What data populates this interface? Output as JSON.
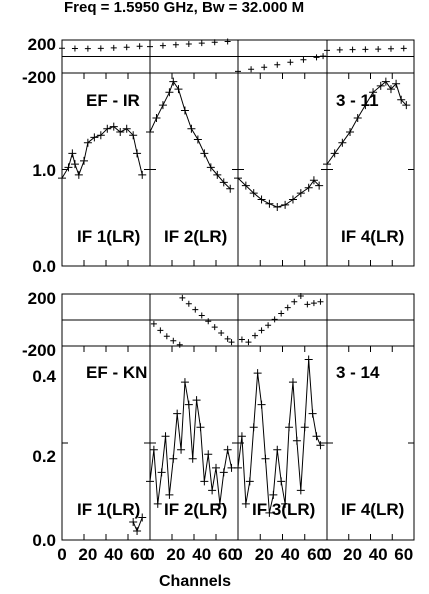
{
  "chart_data": {
    "type": "scatter",
    "title": "Freq = 1.5950 GHz, Bw = 32.000 M",
    "xlabel": "Channels",
    "x_tick_labels": [
      "0",
      "20",
      "40",
      "60"
    ],
    "baselines": [
      {
        "name": "EF - IR",
        "corner_label": "3 - 11",
        "phase_ylim": [
          -200,
          200
        ],
        "phase_tick_labels": [
          "200",
          "-200"
        ],
        "amp_ylim": [
          0,
          1.8
        ],
        "amp_tick_labels": [
          "1.0",
          "0.0"
        ],
        "ifs": [
          {
            "label": "IF 1(LR)",
            "phase": [
              [
                0,
                100
              ],
              [
                10,
                97
              ],
              [
                20,
                95
              ],
              [
                30,
                99
              ],
              [
                40,
                104
              ],
              [
                50,
                112
              ],
              [
                60,
                125
              ]
            ],
            "amp": [
              [
                0,
                0.82
              ],
              [
                5,
                0.92
              ],
              [
                8,
                1.05
              ],
              [
                10,
                0.95
              ],
              [
                13,
                0.85
              ],
              [
                17,
                0.98
              ],
              [
                20,
                1.15
              ],
              [
                25,
                1.2
              ],
              [
                30,
                1.22
              ],
              [
                35,
                1.28
              ],
              [
                40,
                1.3
              ],
              [
                45,
                1.25
              ],
              [
                50,
                1.28
              ],
              [
                55,
                1.22
              ],
              [
                58,
                1.05
              ],
              [
                62,
                0.85
              ]
            ]
          },
          {
            "label": "IF 2(LR)",
            "phase": [
              [
                0,
                120
              ],
              [
                10,
                132
              ],
              [
                20,
                142
              ],
              [
                30,
                152
              ],
              [
                40,
                162
              ],
              [
                50,
                172
              ],
              [
                60,
                182
              ]
            ],
            "amp": [
              [
                0,
                1.25
              ],
              [
                5,
                1.38
              ],
              [
                10,
                1.5
              ],
              [
                15,
                1.62
              ],
              [
                18,
                1.72
              ],
              [
                22,
                1.65
              ],
              [
                27,
                1.45
              ],
              [
                32,
                1.28
              ],
              [
                37,
                1.18
              ],
              [
                42,
                1.05
              ],
              [
                47,
                0.92
              ],
              [
                52,
                0.85
              ],
              [
                57,
                0.78
              ],
              [
                62,
                0.72
              ]
            ]
          },
          {
            "label": "",
            "phase": [
              [
                0,
                -180
              ],
              [
                10,
                -155
              ],
              [
                20,
                -130
              ],
              [
                30,
                -100
              ],
              [
                40,
                -70
              ],
              [
                50,
                -40
              ],
              [
                60,
                -10
              ],
              [
                65,
                5
              ]
            ],
            "amp": [
              [
                0,
                0.82
              ],
              [
                6,
                0.75
              ],
              [
                12,
                0.68
              ],
              [
                18,
                0.62
              ],
              [
                24,
                0.58
              ],
              [
                30,
                0.55
              ],
              [
                36,
                0.57
              ],
              [
                42,
                0.62
              ],
              [
                48,
                0.68
              ],
              [
                54,
                0.73
              ],
              [
                58,
                0.8
              ],
              [
                62,
                0.75
              ]
            ]
          },
          {
            "label": "IF 4(LR)",
            "phase": [
              [
                0,
                75
              ],
              [
                10,
                80
              ],
              [
                20,
                84
              ],
              [
                30,
                87
              ],
              [
                40,
                90
              ],
              [
                50,
                94
              ],
              [
                60,
                98
              ]
            ],
            "amp": [
              [
                0,
                0.95
              ],
              [
                6,
                1.05
              ],
              [
                12,
                1.15
              ],
              [
                18,
                1.25
              ],
              [
                24,
                1.38
              ],
              [
                30,
                1.5
              ],
              [
                36,
                1.62
              ],
              [
                42,
                1.68
              ],
              [
                46,
                1.72
              ],
              [
                50,
                1.65
              ],
              [
                54,
                1.7
              ],
              [
                58,
                1.55
              ],
              [
                62,
                1.5
              ]
            ]
          }
        ]
      },
      {
        "name": "EF - KN",
        "corner_label": "3 - 14",
        "phase_ylim": [
          -200,
          200
        ],
        "phase_tick_labels": [
          "200",
          "-200"
        ],
        "amp_ylim": [
          0.02,
          0.45
        ],
        "amp_tick_labels": [
          "0.4",
          "0.2",
          "0.0"
        ],
        "ifs": [
          {
            "label": "IF 1(LR)",
            "phase": [],
            "amp": [
              [
                55,
                0.06
              ],
              [
                58,
                0.04
              ],
              [
                62,
                0.07
              ]
            ]
          },
          {
            "label": "IF 2(LR)",
            "phase": [
              [
                3,
                -30
              ],
              [
                8,
                -80
              ],
              [
                13,
                -125
              ],
              [
                18,
                -160
              ],
              [
                23,
                -190
              ],
              [
                25,
                170
              ],
              [
                30,
                125
              ],
              [
                35,
                80
              ],
              [
                40,
                35
              ],
              [
                45,
                -10
              ],
              [
                50,
                -55
              ],
              [
                55,
                -100
              ],
              [
                60,
                -145
              ],
              [
                63,
                -170
              ]
            ],
            "amp": [
              [
                0,
                0.15
              ],
              [
                3,
                0.22
              ],
              [
                6,
                0.1
              ],
              [
                9,
                0.17
              ],
              [
                12,
                0.25
              ],
              [
                15,
                0.12
              ],
              [
                18,
                0.2
              ],
              [
                21,
                0.3
              ],
              [
                24,
                0.22
              ],
              [
                27,
                0.37
              ],
              [
                30,
                0.32
              ],
              [
                33,
                0.2
              ],
              [
                36,
                0.33
              ],
              [
                39,
                0.27
              ],
              [
                42,
                0.15
              ],
              [
                45,
                0.21
              ],
              [
                48,
                0.13
              ],
              [
                51,
                0.18
              ],
              [
                54,
                0.1
              ],
              [
                57,
                0.17
              ],
              [
                60,
                0.22
              ],
              [
                63,
                0.18
              ]
            ]
          },
          {
            "label": "IF 3(LR)",
            "phase": [
              [
                3,
                -150
              ],
              [
                8,
                -170
              ],
              [
                13,
                -120
              ],
              [
                18,
                -80
              ],
              [
                23,
                -40
              ],
              [
                28,
                5
              ],
              [
                33,
                50
              ],
              [
                38,
                95
              ],
              [
                43,
                140
              ],
              [
                48,
                185
              ],
              [
                53,
                120
              ],
              [
                58,
                130
              ],
              [
                63,
                140
              ]
            ],
            "amp": [
              [
                0,
                0.18
              ],
              [
                3,
                0.25
              ],
              [
                6,
                0.1
              ],
              [
                9,
                0.15
              ],
              [
                12,
                0.27
              ],
              [
                15,
                0.39
              ],
              [
                18,
                0.32
              ],
              [
                21,
                0.2
              ],
              [
                24,
                0.08
              ],
              [
                27,
                0.12
              ],
              [
                30,
                0.22
              ],
              [
                33,
                0.15
              ],
              [
                36,
                0.1
              ],
              [
                39,
                0.27
              ],
              [
                42,
                0.37
              ],
              [
                45,
                0.24
              ],
              [
                48,
                0.13
              ],
              [
                51,
                0.27
              ],
              [
                54,
                0.42
              ],
              [
                57,
                0.3
              ],
              [
                60,
                0.25
              ],
              [
                63,
                0.23
              ]
            ]
          },
          {
            "label": "IF 4(LR)",
            "phase": [],
            "amp": []
          }
        ]
      }
    ]
  }
}
